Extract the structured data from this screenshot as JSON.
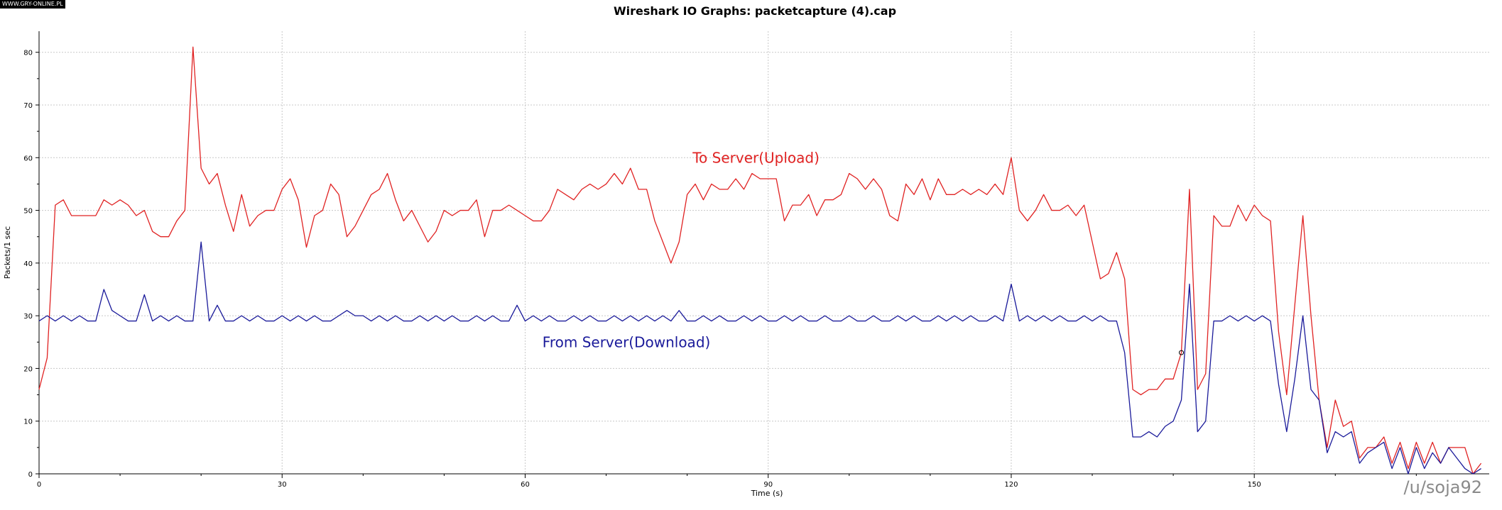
{
  "watermark_top": "WWW.GRY-ONLINE.PL",
  "watermark_bottom": "/u/soja92",
  "colors": {
    "upload": "#e02222",
    "download": "#1a1a9a",
    "grid": "#c8c8c8",
    "axis": "#000000"
  },
  "chart_data": {
    "type": "line",
    "title": "Wireshark IO Graphs: packetcapture (4).cap",
    "xlabel": "Time (s)",
    "ylabel": "Packets/1 sec",
    "xlim": [
      0,
      179
    ],
    "ylim": [
      0,
      84
    ],
    "xticks": [
      0,
      30,
      60,
      90,
      120,
      150
    ],
    "yticks": [
      0,
      10,
      20,
      30,
      40,
      50,
      60,
      70,
      80
    ],
    "grid": true,
    "series": [
      {
        "name": "To Server(Upload)",
        "color": "#e02222",
        "x": [
          0,
          1,
          2,
          3,
          4,
          5,
          6,
          7,
          8,
          9,
          10,
          11,
          12,
          13,
          14,
          15,
          16,
          17,
          18,
          19,
          20,
          21,
          22,
          23,
          24,
          25,
          26,
          27,
          28,
          29,
          30,
          31,
          32,
          33,
          34,
          35,
          36,
          37,
          38,
          39,
          40,
          41,
          42,
          43,
          44,
          45,
          46,
          47,
          48,
          49,
          50,
          51,
          52,
          53,
          54,
          55,
          56,
          57,
          58,
          59,
          60,
          61,
          62,
          63,
          64,
          65,
          66,
          67,
          68,
          69,
          70,
          71,
          72,
          73,
          74,
          75,
          76,
          77,
          78,
          79,
          80,
          81,
          82,
          83,
          84,
          85,
          86,
          87,
          88,
          89,
          90,
          91,
          92,
          93,
          94,
          95,
          96,
          97,
          98,
          99,
          100,
          101,
          102,
          103,
          104,
          105,
          106,
          107,
          108,
          109,
          110,
          111,
          112,
          113,
          114,
          115,
          116,
          117,
          118,
          119,
          120,
          121,
          122,
          123,
          124,
          125,
          126,
          127,
          128,
          129,
          130,
          131,
          132,
          133,
          134,
          135,
          136,
          137,
          138,
          139,
          140,
          141,
          142,
          143,
          144,
          145,
          146,
          147,
          148,
          149,
          150,
          151,
          152,
          153,
          154,
          155,
          156,
          157,
          158,
          159,
          160,
          161,
          162,
          163,
          164,
          165,
          166,
          167,
          168,
          169,
          170,
          171,
          172,
          173,
          174,
          175,
          176,
          177,
          178
        ],
        "y": [
          16,
          22,
          51,
          52,
          49,
          49,
          49,
          49,
          52,
          51,
          52,
          51,
          49,
          50,
          46,
          45,
          45,
          48,
          50,
          81,
          58,
          55,
          57,
          51,
          46,
          53,
          47,
          49,
          50,
          50,
          54,
          56,
          52,
          43,
          49,
          50,
          55,
          53,
          45,
          47,
          50,
          53,
          54,
          57,
          52,
          48,
          50,
          47,
          44,
          46,
          50,
          49,
          50,
          50,
          52,
          45,
          50,
          50,
          51,
          50,
          49,
          48,
          48,
          50,
          54,
          53,
          52,
          54,
          55,
          54,
          55,
          57,
          55,
          58,
          54,
          54,
          48,
          44,
          40,
          44,
          53,
          55,
          52,
          55,
          54,
          54,
          56,
          54,
          57,
          56,
          56,
          56,
          48,
          51,
          51,
          53,
          49,
          52,
          52,
          53,
          57,
          56,
          54,
          56,
          54,
          49,
          48,
          55,
          53,
          56,
          52,
          56,
          53,
          53,
          54,
          53,
          54,
          53,
          55,
          53,
          60,
          50,
          48,
          50,
          53,
          50,
          50,
          51,
          49,
          51,
          44,
          37,
          38,
          42,
          37,
          16,
          15,
          16,
          16,
          18,
          18,
          23,
          54,
          16,
          19,
          49,
          47,
          47,
          51,
          48,
          51,
          49,
          48,
          27,
          15,
          32,
          49,
          30,
          14,
          5,
          14,
          9,
          10,
          3,
          5,
          5,
          7,
          2,
          6,
          1,
          6,
          2,
          6,
          2,
          5,
          5,
          5,
          0,
          2
        ]
      },
      {
        "name": "From Server(Download)",
        "color": "#1a1a9a",
        "x": [
          0,
          1,
          2,
          3,
          4,
          5,
          6,
          7,
          8,
          9,
          10,
          11,
          12,
          13,
          14,
          15,
          16,
          17,
          18,
          19,
          20,
          21,
          22,
          23,
          24,
          25,
          26,
          27,
          28,
          29,
          30,
          31,
          32,
          33,
          34,
          35,
          36,
          37,
          38,
          39,
          40,
          41,
          42,
          43,
          44,
          45,
          46,
          47,
          48,
          49,
          50,
          51,
          52,
          53,
          54,
          55,
          56,
          57,
          58,
          59,
          60,
          61,
          62,
          63,
          64,
          65,
          66,
          67,
          68,
          69,
          70,
          71,
          72,
          73,
          74,
          75,
          76,
          77,
          78,
          79,
          80,
          81,
          82,
          83,
          84,
          85,
          86,
          87,
          88,
          89,
          90,
          91,
          92,
          93,
          94,
          95,
          96,
          97,
          98,
          99,
          100,
          101,
          102,
          103,
          104,
          105,
          106,
          107,
          108,
          109,
          110,
          111,
          112,
          113,
          114,
          115,
          116,
          117,
          118,
          119,
          120,
          121,
          122,
          123,
          124,
          125,
          126,
          127,
          128,
          129,
          130,
          131,
          132,
          133,
          134,
          135,
          136,
          137,
          138,
          139,
          140,
          141,
          142,
          143,
          144,
          145,
          146,
          147,
          148,
          149,
          150,
          151,
          152,
          153,
          154,
          155,
          156,
          157,
          158,
          159,
          160,
          161,
          162,
          163,
          164,
          165,
          166,
          167,
          168,
          169,
          170,
          171,
          172,
          173,
          174,
          175,
          176,
          177,
          178
        ],
        "y": [
          29,
          30,
          29,
          30,
          29,
          30,
          29,
          29,
          35,
          31,
          30,
          29,
          29,
          34,
          29,
          30,
          29,
          30,
          29,
          29,
          44,
          29,
          32,
          29,
          29,
          30,
          29,
          30,
          29,
          29,
          30,
          29,
          30,
          29,
          30,
          29,
          29,
          30,
          31,
          30,
          30,
          29,
          30,
          29,
          30,
          29,
          29,
          30,
          29,
          30,
          29,
          30,
          29,
          29,
          30,
          29,
          30,
          29,
          29,
          32,
          29,
          30,
          29,
          30,
          29,
          29,
          30,
          29,
          30,
          29,
          29,
          30,
          29,
          30,
          29,
          30,
          29,
          30,
          29,
          31,
          29,
          29,
          30,
          29,
          30,
          29,
          29,
          30,
          29,
          30,
          29,
          29,
          30,
          29,
          30,
          29,
          29,
          30,
          29,
          29,
          30,
          29,
          29,
          30,
          29,
          29,
          30,
          29,
          30,
          29,
          29,
          30,
          29,
          30,
          29,
          30,
          29,
          29,
          30,
          29,
          36,
          29,
          30,
          29,
          30,
          29,
          30,
          29,
          29,
          30,
          29,
          30,
          29,
          29,
          23,
          7,
          7,
          8,
          7,
          9,
          10,
          14,
          36,
          8,
          10,
          29,
          29,
          30,
          29,
          30,
          29,
          30,
          29,
          17,
          8,
          18,
          30,
          16,
          14,
          4,
          8,
          7,
          8,
          2,
          4,
          5,
          6,
          1,
          5,
          0,
          5,
          1,
          4,
          2,
          5,
          3,
          1,
          0,
          1
        ]
      }
    ],
    "annotations": [
      {
        "text": "To Server(Upload)",
        "x": 88.5,
        "y": 60,
        "series": "upload"
      },
      {
        "text": "From Server(Download)",
        "x": 72.5,
        "y": 25,
        "series": "download"
      }
    ],
    "marker": {
      "x": 141,
      "y": 23
    }
  }
}
